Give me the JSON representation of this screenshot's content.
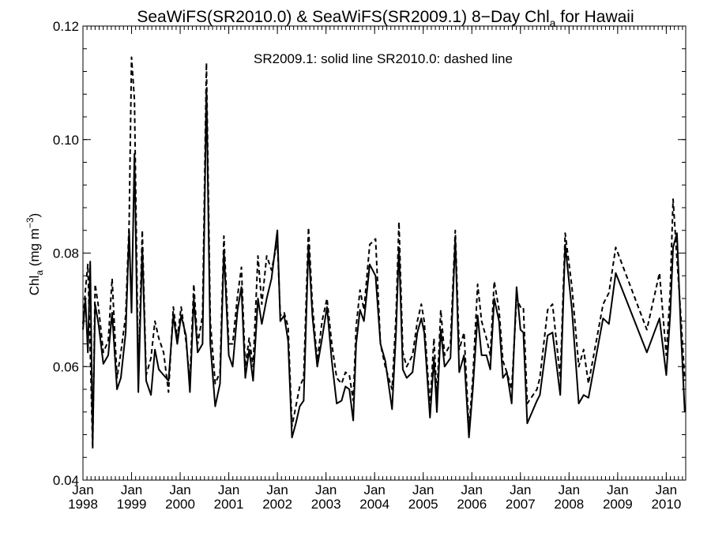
{
  "chart_data": {
    "type": "line",
    "title": "SeaWiFS(SR2010.0) & SeaWiFS(SR2009.1) 8−Day Chl",
    "title_subscript": "a",
    "title_suffix": " for Hawaii",
    "annotation": "SR2009.1: solid line   SR2010.0: dashed line",
    "ylabel_main": "Chl",
    "ylabel_sub": "a",
    "ylabel_unit": " (mg m",
    "ylabel_sup": "−3",
    "ylabel_close": ")",
    "xlabel": "",
    "ylim": [
      0.04,
      0.12
    ],
    "xlim": [
      1998.0,
      2010.4
    ],
    "grid": false,
    "yticks": [
      {
        "value": 0.04,
        "label": "0.04"
      },
      {
        "value": 0.06,
        "label": "0.06"
      },
      {
        "value": 0.08,
        "label": "0.08"
      },
      {
        "value": 0.1,
        "label": "0.10"
      },
      {
        "value": 0.12,
        "label": "0.12"
      }
    ],
    "xticks": [
      {
        "value": 1998,
        "month": "Jan",
        "year": "1998"
      },
      {
        "value": 1999,
        "month": "Jan",
        "year": "1999"
      },
      {
        "value": 2000,
        "month": "Jan",
        "year": "2000"
      },
      {
        "value": 2001,
        "month": "Jan",
        "year": "2001"
      },
      {
        "value": 2002,
        "month": "Jan",
        "year": "2002"
      },
      {
        "value": 2003,
        "month": "Jan",
        "year": "2003"
      },
      {
        "value": 2004,
        "month": "Jan",
        "year": "2004"
      },
      {
        "value": 2005,
        "month": "Jan",
        "year": "2005"
      },
      {
        "value": 2006,
        "month": "Jan",
        "year": "2006"
      },
      {
        "value": 2007,
        "month": "Jan",
        "year": "2007"
      },
      {
        "value": 2008,
        "month": "Jan",
        "year": "2008"
      },
      {
        "value": 2009,
        "month": "Jan",
        "year": "2009"
      },
      {
        "value": 2010,
        "month": "Jan",
        "year": "2010"
      }
    ],
    "series": [
      {
        "name": "SR2009.1",
        "style": "solid",
        "color": "#000000",
        "points": [
          [
            1998.0,
            0.0665
          ],
          [
            1998.05,
            0.072
          ],
          [
            1998.1,
            0.0625
          ],
          [
            1998.15,
            0.0785
          ],
          [
            1998.2,
            0.0465
          ],
          [
            1998.25,
            0.071
          ],
          [
            1998.32,
            0.0675
          ],
          [
            1998.42,
            0.0605
          ],
          [
            1998.52,
            0.062
          ],
          [
            1998.6,
            0.0695
          ],
          [
            1998.7,
            0.056
          ],
          [
            1998.78,
            0.058
          ],
          [
            1998.88,
            0.066
          ],
          [
            1998.95,
            0.084
          ],
          [
            1999.0,
            0.0695
          ],
          [
            1999.06,
            0.0975
          ],
          [
            1999.14,
            0.0555
          ],
          [
            1999.22,
            0.081
          ],
          [
            1999.3,
            0.0575
          ],
          [
            1999.4,
            0.055
          ],
          [
            1999.48,
            0.063
          ],
          [
            1999.56,
            0.0595
          ],
          [
            1999.66,
            0.0585
          ],
          [
            1999.76,
            0.0575
          ],
          [
            1999.86,
            0.069
          ],
          [
            1999.94,
            0.064
          ],
          [
            2000.02,
            0.069
          ],
          [
            2000.12,
            0.0655
          ],
          [
            2000.2,
            0.0555
          ],
          [
            2000.28,
            0.072
          ],
          [
            2000.36,
            0.0625
          ],
          [
            2000.46,
            0.064
          ],
          [
            2000.54,
            0.109
          ],
          [
            2000.62,
            0.064
          ],
          [
            2000.72,
            0.053
          ],
          [
            2000.82,
            0.057
          ],
          [
            2000.9,
            0.0805
          ],
          [
            2001.0,
            0.062
          ],
          [
            2001.08,
            0.06
          ],
          [
            2001.18,
            0.07
          ],
          [
            2001.26,
            0.074
          ],
          [
            2001.34,
            0.058
          ],
          [
            2001.42,
            0.063
          ],
          [
            2001.5,
            0.0575
          ],
          [
            2001.6,
            0.072
          ],
          [
            2001.68,
            0.0675
          ],
          [
            2001.78,
            0.072
          ],
          [
            2001.88,
            0.0755
          ],
          [
            2002.0,
            0.084
          ],
          [
            2002.06,
            0.068
          ],
          [
            2002.14,
            0.069
          ],
          [
            2002.22,
            0.0645
          ],
          [
            2002.3,
            0.0475
          ],
          [
            2002.38,
            0.05
          ],
          [
            2002.46,
            0.053
          ],
          [
            2002.54,
            0.054
          ],
          [
            2002.64,
            0.0815
          ],
          [
            2002.72,
            0.069
          ],
          [
            2002.82,
            0.06
          ],
          [
            2002.92,
            0.065
          ],
          [
            2003.02,
            0.0705
          ],
          [
            2003.12,
            0.061
          ],
          [
            2003.22,
            0.0535
          ],
          [
            2003.32,
            0.054
          ],
          [
            2003.4,
            0.0565
          ],
          [
            2003.48,
            0.056
          ],
          [
            2003.56,
            0.0505
          ],
          [
            2003.62,
            0.064
          ],
          [
            2003.7,
            0.07
          ],
          [
            2003.78,
            0.068
          ],
          [
            2003.9,
            0.078
          ],
          [
            2004.02,
            0.076
          ],
          [
            2004.12,
            0.064
          ],
          [
            2004.22,
            0.061
          ],
          [
            2004.36,
            0.0525
          ],
          [
            2004.44,
            0.066
          ],
          [
            2004.5,
            0.081
          ],
          [
            2004.58,
            0.0595
          ],
          [
            2004.66,
            0.058
          ],
          [
            2004.78,
            0.059
          ],
          [
            2004.88,
            0.066
          ],
          [
            2004.96,
            0.0685
          ],
          [
            2005.02,
            0.066
          ],
          [
            2005.14,
            0.051
          ],
          [
            2005.22,
            0.0615
          ],
          [
            2005.28,
            0.052
          ],
          [
            2005.36,
            0.0665
          ],
          [
            2005.44,
            0.06
          ],
          [
            2005.56,
            0.0615
          ],
          [
            2005.66,
            0.0825
          ],
          [
            2005.74,
            0.059
          ],
          [
            2005.84,
            0.062
          ],
          [
            2005.94,
            0.0475
          ],
          [
            2006.02,
            0.056
          ],
          [
            2006.12,
            0.069
          ],
          [
            2006.2,
            0.062
          ],
          [
            2006.3,
            0.062
          ],
          [
            2006.38,
            0.0595
          ],
          [
            2006.46,
            0.072
          ],
          [
            2006.56,
            0.068
          ],
          [
            2006.64,
            0.058
          ],
          [
            2006.72,
            0.059
          ],
          [
            2006.82,
            0.0535
          ],
          [
            2006.92,
            0.074
          ],
          [
            2007.0,
            0.0665
          ],
          [
            2007.06,
            0.066
          ],
          [
            2007.14,
            0.05
          ],
          [
            2007.34,
            0.054
          ],
          [
            2007.4,
            0.055
          ],
          [
            2007.56,
            0.0655
          ],
          [
            2007.66,
            0.066
          ],
          [
            2007.82,
            0.055
          ],
          [
            2007.92,
            0.0815
          ],
          [
            2008.06,
            0.07
          ],
          [
            2008.2,
            0.0535
          ],
          [
            2008.3,
            0.055
          ],
          [
            2008.4,
            0.0545
          ],
          [
            2008.7,
            0.0685
          ],
          [
            2008.82,
            0.0675
          ],
          [
            2008.96,
            0.0765
          ],
          [
            2009.6,
            0.0625
          ],
          [
            2009.86,
            0.0685
          ],
          [
            2010.0,
            0.0585
          ],
          [
            2010.08,
            0.069
          ],
          [
            2010.14,
            0.081
          ],
          [
            2010.22,
            0.0835
          ],
          [
            2010.3,
            0.0665
          ],
          [
            2010.38,
            0.052
          ]
        ]
      },
      {
        "name": "SR2010.0",
        "style": "dashed",
        "color": "#000000",
        "points": [
          [
            1998.0,
            0.0675
          ],
          [
            1998.05,
            0.0735
          ],
          [
            1998.1,
            0.078
          ],
          [
            1998.15,
            0.063
          ],
          [
            1998.2,
            0.0455
          ],
          [
            1998.25,
            0.0745
          ],
          [
            1998.32,
            0.0705
          ],
          [
            1998.42,
            0.0625
          ],
          [
            1998.52,
            0.0645
          ],
          [
            1998.6,
            0.0755
          ],
          [
            1998.7,
            0.058
          ],
          [
            1998.78,
            0.0625
          ],
          [
            1998.88,
            0.069
          ],
          [
            1998.95,
            0.0855
          ],
          [
            1999.0,
            0.1145
          ],
          [
            1999.06,
            0.107
          ],
          [
            1999.14,
            0.0585
          ],
          [
            1999.22,
            0.084
          ],
          [
            1999.3,
            0.0585
          ],
          [
            1999.4,
            0.0615
          ],
          [
            1999.48,
            0.068
          ],
          [
            1999.56,
            0.065
          ],
          [
            1999.66,
            0.0625
          ],
          [
            1999.76,
            0.0555
          ],
          [
            1999.86,
            0.0705
          ],
          [
            1999.94,
            0.065
          ],
          [
            2000.02,
            0.0705
          ],
          [
            2000.12,
            0.0645
          ],
          [
            2000.2,
            0.0575
          ],
          [
            2000.28,
            0.0745
          ],
          [
            2000.36,
            0.064
          ],
          [
            2000.46,
            0.069
          ],
          [
            2000.54,
            0.1135
          ],
          [
            2000.62,
            0.068
          ],
          [
            2000.72,
            0.057
          ],
          [
            2000.82,
            0.059
          ],
          [
            2000.9,
            0.083
          ],
          [
            2001.0,
            0.064
          ],
          [
            2001.08,
            0.064
          ],
          [
            2001.18,
            0.0725
          ],
          [
            2001.26,
            0.0775
          ],
          [
            2001.34,
            0.06
          ],
          [
            2001.42,
            0.065
          ],
          [
            2001.5,
            0.06
          ],
          [
            2001.6,
            0.0795
          ],
          [
            2001.68,
            0.071
          ],
          [
            2001.78,
            0.0795
          ],
          [
            2001.88,
            0.077
          ],
          [
            2002.0,
            0.082
          ],
          [
            2002.06,
            0.069
          ],
          [
            2002.14,
            0.0695
          ],
          [
            2002.22,
            0.067
          ],
          [
            2002.3,
            0.0495
          ],
          [
            2002.38,
            0.053
          ],
          [
            2002.46,
            0.0565
          ],
          [
            2002.54,
            0.058
          ],
          [
            2002.64,
            0.0845
          ],
          [
            2002.72,
            0.071
          ],
          [
            2002.82,
            0.061
          ],
          [
            2002.92,
            0.068
          ],
          [
            2003.02,
            0.072
          ],
          [
            2003.12,
            0.064
          ],
          [
            2003.22,
            0.058
          ],
          [
            2003.32,
            0.057
          ],
          [
            2003.4,
            0.059
          ],
          [
            2003.48,
            0.0585
          ],
          [
            2003.56,
            0.054
          ],
          [
            2003.62,
            0.067
          ],
          [
            2003.7,
            0.0735
          ],
          [
            2003.78,
            0.07
          ],
          [
            2003.9,
            0.0815
          ],
          [
            2004.02,
            0.0825
          ],
          [
            2004.12,
            0.064
          ],
          [
            2004.22,
            0.06
          ],
          [
            2004.36,
            0.056
          ],
          [
            2004.44,
            0.069
          ],
          [
            2004.5,
            0.0855
          ],
          [
            2004.58,
            0.0625
          ],
          [
            2004.66,
            0.06
          ],
          [
            2004.78,
            0.062
          ],
          [
            2004.88,
            0.068
          ],
          [
            2004.96,
            0.071
          ],
          [
            2005.02,
            0.068
          ],
          [
            2005.14,
            0.053
          ],
          [
            2005.22,
            0.065
          ],
          [
            2005.28,
            0.0545
          ],
          [
            2005.36,
            0.07
          ],
          [
            2005.44,
            0.062
          ],
          [
            2005.56,
            0.064
          ],
          [
            2005.66,
            0.084
          ],
          [
            2005.74,
            0.063
          ],
          [
            2005.84,
            0.066
          ],
          [
            2005.94,
            0.049
          ],
          [
            2006.02,
            0.058
          ],
          [
            2006.12,
            0.0745
          ],
          [
            2006.2,
            0.068
          ],
          [
            2006.3,
            0.065
          ],
          [
            2006.38,
            0.062
          ],
          [
            2006.46,
            0.075
          ],
          [
            2006.56,
            0.07
          ],
          [
            2006.64,
            0.061
          ],
          [
            2006.72,
            0.059
          ],
          [
            2006.82,
            0.056
          ],
          [
            2006.92,
            0.072
          ],
          [
            2007.0,
            0.0705
          ],
          [
            2007.06,
            0.0705
          ],
          [
            2007.14,
            0.0535
          ],
          [
            2007.34,
            0.056
          ],
          [
            2007.4,
            0.058
          ],
          [
            2007.56,
            0.07
          ],
          [
            2007.66,
            0.071
          ],
          [
            2007.82,
            0.058
          ],
          [
            2007.92,
            0.0835
          ],
          [
            2008.06,
            0.074
          ],
          [
            2008.2,
            0.06
          ],
          [
            2008.3,
            0.063
          ],
          [
            2008.4,
            0.057
          ],
          [
            2008.7,
            0.071
          ],
          [
            2008.82,
            0.073
          ],
          [
            2008.96,
            0.081
          ],
          [
            2009.6,
            0.0665
          ],
          [
            2009.86,
            0.0765
          ],
          [
            2010.0,
            0.062
          ],
          [
            2010.08,
            0.073
          ],
          [
            2010.14,
            0.0895
          ],
          [
            2010.22,
            0.079
          ],
          [
            2010.3,
            0.069
          ],
          [
            2010.38,
            0.0575
          ]
        ]
      }
    ]
  }
}
